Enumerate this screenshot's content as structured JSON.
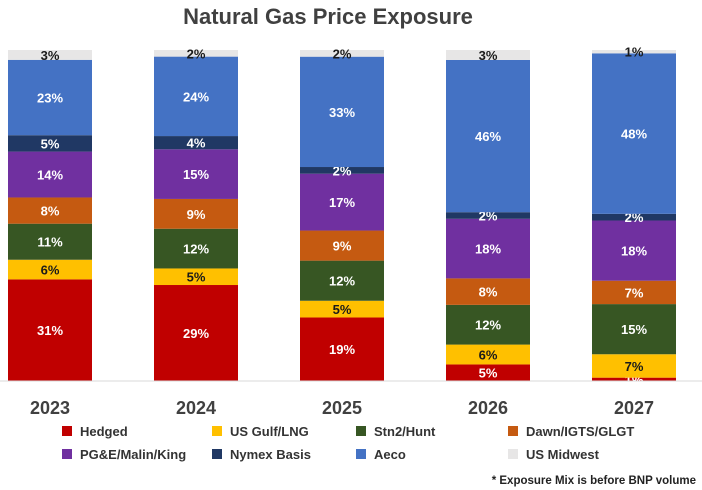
{
  "chart_data": {
    "type": "bar",
    "stacked": true,
    "title": "Natural Gas Price Exposure",
    "categories": [
      "2023",
      "2024",
      "2025",
      "2026",
      "2027"
    ],
    "value_format": "percent",
    "legend_position": "bottom",
    "series": [
      {
        "name": "Hedged",
        "color": "#C00000",
        "label_color": "#ffffff",
        "values": [
          31,
          29,
          19,
          5,
          1
        ]
      },
      {
        "name": "US Gulf/LNG",
        "color": "#FFC000",
        "label_color": "#1a1a1a",
        "values": [
          6,
          5,
          5,
          6,
          7
        ]
      },
      {
        "name": "Stn2/Hunt",
        "color": "#375623",
        "label_color": "#ffffff",
        "values": [
          11,
          12,
          12,
          12,
          15
        ]
      },
      {
        "name": "Dawn/IGTS/GLGT",
        "color": "#C55A11",
        "label_color": "#ffffff",
        "values": [
          8,
          9,
          9,
          8,
          7
        ]
      },
      {
        "name": "PG&E/Malin/King",
        "color": "#7030A0",
        "label_color": "#ffffff",
        "values": [
          14,
          15,
          17,
          18,
          18
        ]
      },
      {
        "name": "Nymex Basis",
        "color": "#203864",
        "label_color": "#ffffff",
        "values": [
          5,
          4,
          2,
          2,
          2
        ]
      },
      {
        "name": "Aeco",
        "color": "#4472C4",
        "label_color": "#ffffff",
        "values": [
          23,
          24,
          33,
          46,
          48
        ]
      },
      {
        "name": "US Midwest",
        "color": "#E7E6E6",
        "label_color": "#1a1a1a",
        "values": [
          3,
          2,
          2,
          3,
          1
        ]
      }
    ],
    "footnote": "* Exposure Mix is before BNP volume"
  }
}
